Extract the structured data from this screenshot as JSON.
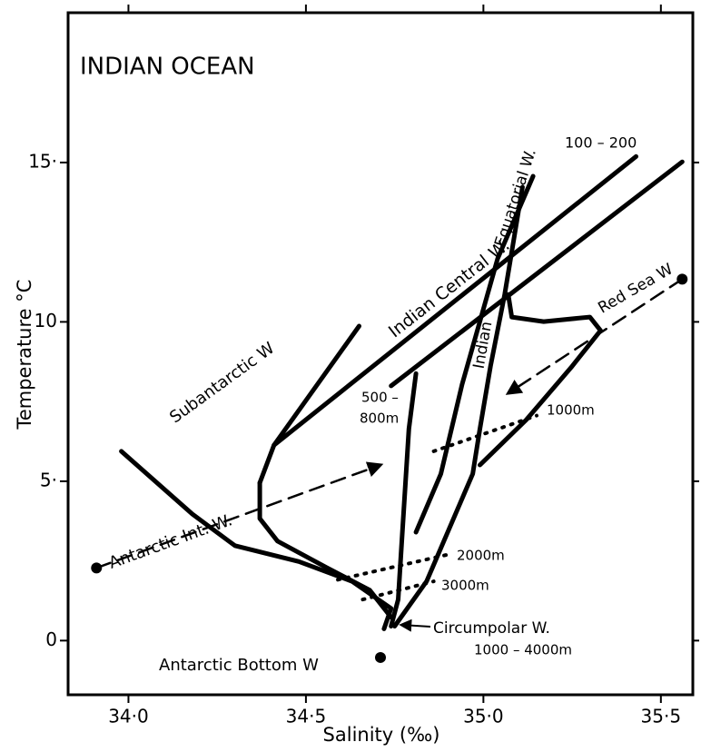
{
  "chart_data": {
    "type": "line",
    "title": "INDIAN OCEAN",
    "x_label": "Salinity (‰)",
    "y_label": "Temperature °C",
    "xlim": [
      33.83,
      35.59
    ],
    "ylim": [
      -1.7,
      19.7
    ],
    "xticks": [
      {
        "value": 34,
        "label": "34·0"
      },
      {
        "value": 34.5,
        "label": "34·5"
      },
      {
        "value": 35,
        "label": "35·0"
      },
      {
        "value": 35.5,
        "label": "35·5"
      }
    ],
    "yticks": [
      0,
      {
        "value": 5,
        "label": "5·"
      },
      10,
      {
        "value": 15,
        "label": "15·"
      }
    ],
    "series": [
      {
        "style": "solid",
        "color": "#000000",
        "x": [
          33.98,
          34.18,
          34.3,
          34.48,
          34.63,
          34.74,
          34.72
        ],
        "y": [
          5.94,
          3.97,
          2.98,
          2.48,
          1.86,
          1.01,
          0.37
        ]
      },
      {
        "style": "solid",
        "color": "#000000",
        "x": [
          34.37,
          34.37,
          34.42,
          34.56,
          34.68,
          34.74
        ],
        "y": [
          4.95,
          3.83,
          3.12,
          2.28,
          1.58,
          0.73
        ]
      },
      {
        "style": "solid",
        "color": "#000000",
        "x": [
          34.37,
          34.41,
          34.65
        ],
        "y": [
          4.95,
          6.13,
          9.87
        ]
      },
      {
        "style": "solid",
        "color": "#000000",
        "x": [
          34.41,
          35.43
        ],
        "y": [
          6.13,
          15.19
        ]
      },
      {
        "style": "solid",
        "color": "#000000",
        "x": [
          34.74,
          35.56
        ],
        "y": [
          7.99,
          15.02
        ]
      },
      {
        "style": "solid",
        "color": "#000000",
        "x": [
          34.81,
          34.79,
          34.77,
          34.76,
          34.74
        ],
        "y": [
          8.38,
          6.64,
          3.12,
          1.29,
          0.45
        ]
      },
      {
        "style": "solid",
        "color": "#000000",
        "x": [
          35.14,
          35.04,
          34.94,
          34.88,
          34.81
        ],
        "y": [
          14.57,
          11.98,
          8.04,
          5.23,
          3.4
        ]
      },
      {
        "style": "solid",
        "color": "#000000",
        "x": [
          35.11,
          35.06,
          35.02,
          34.99,
          34.97,
          34.84,
          34.75
        ],
        "y": [
          14.23,
          10.86,
          8.61,
          6.64,
          5.23,
          1.86,
          0.45
        ]
      },
      {
        "style": "solid",
        "color": "#000000",
        "x": [
          35.07,
          35.08,
          35.17,
          35.3,
          35.33,
          35.25,
          35.12,
          34.99
        ],
        "y": [
          10.86,
          10.15,
          10.01,
          10.15,
          9.73,
          8.61,
          6.92,
          5.51
        ]
      },
      {
        "style": "dashed",
        "color": "#000000",
        "x": [
          33.91,
          34.71
        ],
        "y": [
          2.28,
          5.51
        ]
      },
      {
        "style": "dashed",
        "color": "#000000",
        "x": [
          35.56,
          35.07
        ],
        "y": [
          11.34,
          7.76
        ]
      },
      {
        "style": "dotted",
        "color": "#000000",
        "x": [
          34.86,
          35.15
        ],
        "y": [
          5.94,
          7.06
        ]
      },
      {
        "style": "dotted",
        "color": "#000000",
        "x": [
          34.59,
          34.9
        ],
        "y": [
          1.91,
          2.7
        ]
      },
      {
        "style": "dotted",
        "color": "#000000",
        "x": [
          34.66,
          34.86
        ],
        "y": [
          1.29,
          1.86
        ]
      },
      {
        "style": "marker",
        "color": "#000000",
        "x": [
          33.91,
          35.56,
          34.71
        ],
        "y": [
          2.28,
          11.34,
          -0.53
        ]
      }
    ],
    "annotations": [
      "Equatorial W.",
      "100 – 200",
      "Indian Central W.",
      "Red Sea W",
      "Indian",
      "Subantarctic W",
      "500 –",
      "800m",
      "1000m",
      "Antarctic Int. W.",
      "2000m",
      "3000m",
      "Circumpolar W.",
      "1000 – 4000m",
      "Antarctic Bottom W"
    ]
  }
}
